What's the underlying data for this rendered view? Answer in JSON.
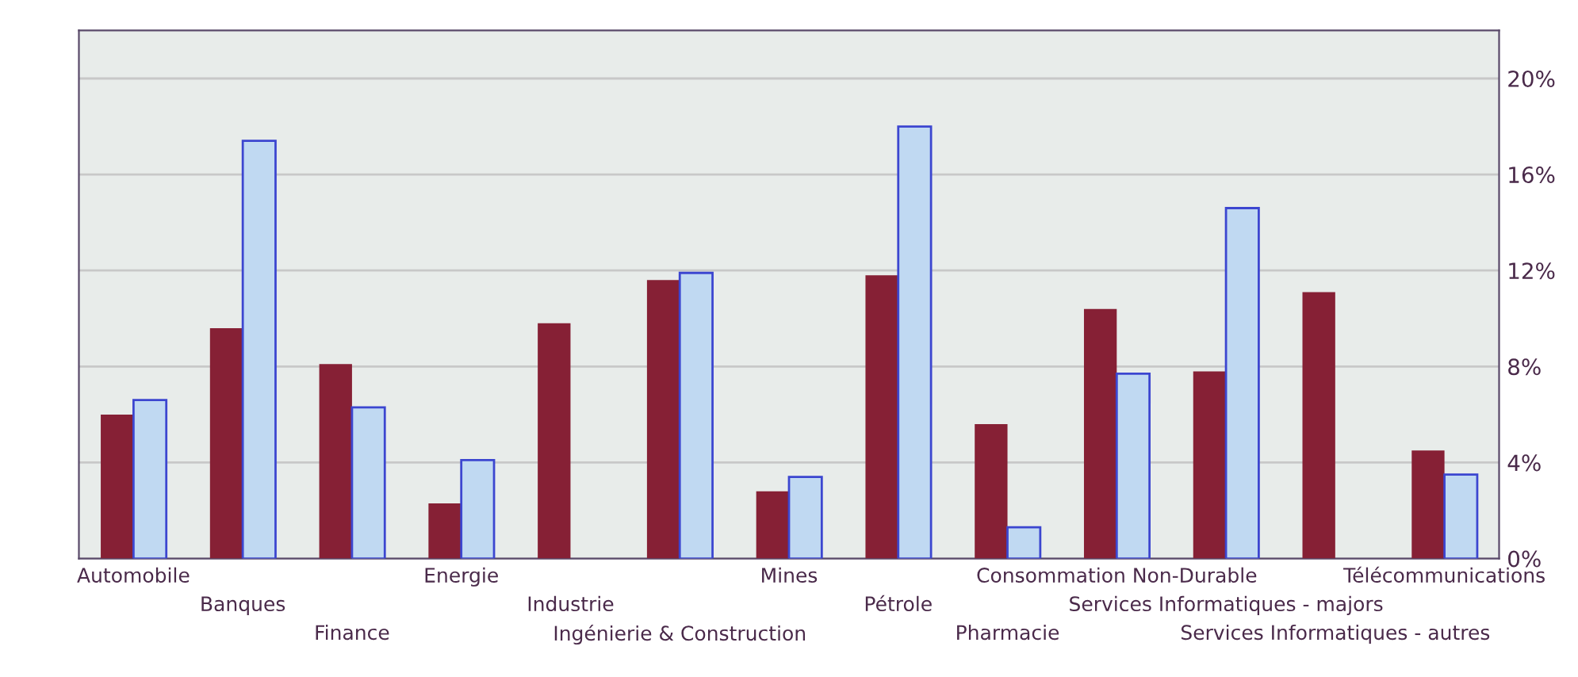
{
  "chart_data": {
    "type": "bar",
    "categories": [
      "Automobile",
      "Banques",
      "Finance",
      "Energie",
      "Industrie",
      "Ingénierie & Construction",
      "Mines",
      "Pétrole",
      "Pharmacie",
      "Consommation Non-Durable",
      "Services Informatiques - majors",
      "Services Informatiques - autres",
      "Télécommunications"
    ],
    "series": [
      {
        "color": "#862035",
        "values": [
          6.0,
          9.6,
          8.1,
          2.3,
          9.8,
          11.6,
          2.8,
          11.8,
          5.6,
          10.4,
          7.8,
          11.1,
          4.5
        ]
      },
      {
        "color": "#c0d9f2",
        "values": [
          6.6,
          17.4,
          6.3,
          4.1,
          null,
          11.9,
          3.4,
          18.0,
          1.3,
          7.7,
          14.6,
          null,
          3.5
        ]
      }
    ],
    "ylim": [
      0,
      22
    ],
    "yticks": [
      {
        "value": 0,
        "label": "0%"
      },
      {
        "value": 4,
        "label": "4%"
      },
      {
        "value": 8,
        "label": "8%"
      },
      {
        "value": 12,
        "label": "12%"
      },
      {
        "value": 16,
        "label": "16%"
      },
      {
        "value": 20,
        "label": "20%"
      }
    ],
    "grid": "y"
  }
}
